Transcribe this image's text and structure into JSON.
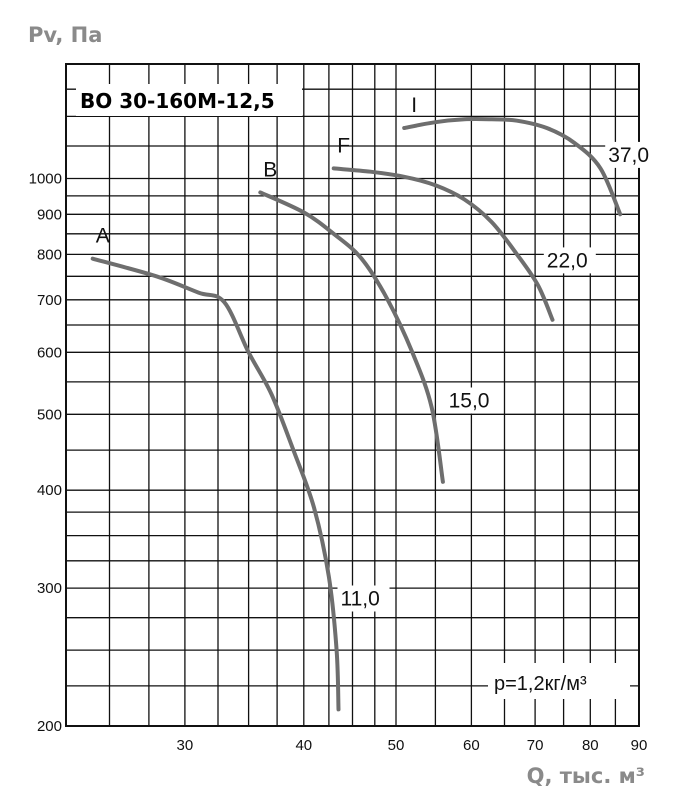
{
  "chart_data": {
    "type": "line",
    "title": "ВО 30-160М-12,5",
    "xlabel": "Q, тыс. м³",
    "ylabel": "Pv, Па",
    "xscale": "log",
    "yscale": "log",
    "xlim": [
      22.5,
      90
    ],
    "ylim": [
      200,
      1400
    ],
    "x_ticks": [
      30,
      40,
      50,
      60,
      70,
      80,
      90
    ],
    "y_ticks": [
      200,
      300,
      400,
      500,
      600,
      700,
      800,
      900,
      1000
    ],
    "x_tick_labels": [
      "30",
      "40",
      "50",
      "60",
      "70",
      "80",
      "90"
    ],
    "y_tick_labels": [
      "200",
      "300",
      "400",
      "500",
      "600",
      "700",
      "800",
      "900",
      "1000"
    ],
    "grid": true,
    "annotation": "p=1,2кг/м³",
    "series": [
      {
        "name": "A",
        "power": "11,0",
        "x": [
          24.0,
          28.0,
          31.0,
          33.0,
          35.0,
          37.0,
          39.0,
          41.0,
          42.5,
          43.3,
          43.5
        ],
        "y": [
          790,
          750,
          715,
          695,
          600,
          530,
          450,
          380,
          310,
          250,
          210
        ]
      },
      {
        "name": "B",
        "power": "15,0",
        "x": [
          36.0,
          40.0,
          43.0,
          46.0,
          49.0,
          52.0,
          54.5,
          56.0
        ],
        "y": [
          960,
          905,
          850,
          790,
          700,
          600,
          510,
          410
        ]
      },
      {
        "name": "F",
        "power": "22,0",
        "x": [
          43.0,
          47.0,
          51.0,
          55.0,
          59.0,
          63.0,
          67.0,
          70.5,
          73.0
        ],
        "y": [
          1030,
          1020,
          1005,
          980,
          940,
          880,
          800,
          730,
          660
        ]
      },
      {
        "name": "I",
        "power": "37,0",
        "x": [
          51.0,
          55.0,
          59.0,
          63.0,
          67.0,
          72.0,
          77.0,
          82.0,
          86.0
        ],
        "y": [
          1160,
          1180,
          1190,
          1190,
          1185,
          1160,
          1110,
          1030,
          900
        ]
      }
    ]
  }
}
